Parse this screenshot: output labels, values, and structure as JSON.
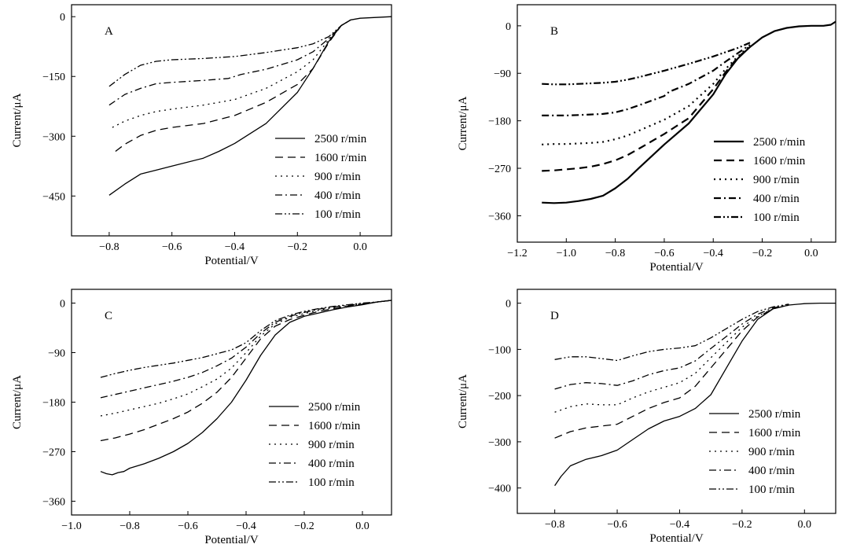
{
  "legend_labels": [
    "2500 r/min",
    "1600 r/min",
    "900 r/min",
    "400 r/min",
    "100 r/min"
  ],
  "chart_data": [
    {
      "panel": "A",
      "type": "line",
      "xlabel": "Potential/V",
      "ylabel": "Current/μA",
      "xlim": [
        -0.92,
        0.1
      ],
      "ylim": [
        -550,
        30
      ],
      "xticks": [
        -0.8,
        -0.6,
        -0.4,
        -0.2,
        0.0
      ],
      "xtick_labels": [
        "−0.8",
        "−0.6",
        "−0.4",
        "−0.2",
        "0.0"
      ],
      "yticks": [
        0,
        -150,
        -300,
        -450
      ],
      "ytick_labels": [
        "0",
        "−150",
        "−300",
        "−450"
      ],
      "legend_position": "right",
      "series": [
        {
          "name": "2500 r/min",
          "x": [
            -0.8,
            -0.75,
            -0.7,
            -0.65,
            -0.6,
            -0.5,
            -0.45,
            -0.4,
            -0.3,
            -0.2,
            -0.15,
            -0.1,
            -0.06,
            -0.03,
            0.0,
            0.05,
            0.1
          ],
          "y": [
            -448,
            -420,
            -395,
            -385,
            -375,
            -355,
            -338,
            -318,
            -268,
            -190,
            -130,
            -62,
            -22,
            -8,
            -4,
            -2,
            0
          ]
        },
        {
          "name": "1600 r/min",
          "x": [
            -0.78,
            -0.75,
            -0.7,
            -0.65,
            -0.6,
            -0.5,
            -0.4,
            -0.3,
            -0.2,
            -0.15,
            -0.1,
            -0.06,
            -0.03
          ],
          "y": [
            -338,
            -320,
            -298,
            -285,
            -278,
            -268,
            -248,
            -215,
            -170,
            -130,
            -65,
            -22,
            -8
          ]
        },
        {
          "name": "900 r/min",
          "x": [
            -0.79,
            -0.75,
            -0.7,
            -0.65,
            -0.6,
            -0.5,
            -0.4,
            -0.3,
            -0.2,
            -0.15,
            -0.1,
            -0.06,
            -0.03
          ],
          "y": [
            -278,
            -262,
            -248,
            -238,
            -232,
            -222,
            -208,
            -180,
            -138,
            -108,
            -58,
            -22,
            -8
          ]
        },
        {
          "name": "400 r/min",
          "x": [
            -0.8,
            -0.75,
            -0.7,
            -0.65,
            -0.6,
            -0.5,
            -0.42,
            -0.38,
            -0.3,
            -0.2,
            -0.15,
            -0.1,
            -0.06,
            -0.03
          ],
          "y": [
            -222,
            -195,
            -180,
            -168,
            -165,
            -160,
            -155,
            -145,
            -132,
            -108,
            -88,
            -55,
            -22,
            -8
          ]
        },
        {
          "name": "100 r/min",
          "x": [
            -0.8,
            -0.75,
            -0.7,
            -0.65,
            -0.6,
            -0.5,
            -0.4,
            -0.3,
            -0.2,
            -0.15,
            -0.1,
            -0.06,
            -0.03
          ],
          "y": [
            -175,
            -145,
            -122,
            -112,
            -108,
            -105,
            -100,
            -90,
            -78,
            -68,
            -50,
            -22,
            -8
          ]
        }
      ]
    },
    {
      "panel": "B",
      "type": "line",
      "xlabel": "Potential/V",
      "ylabel": "Current/μA",
      "xlim": [
        -1.2,
        0.1
      ],
      "ylim": [
        -410,
        40
      ],
      "xticks": [
        -1.2,
        -1.0,
        -0.8,
        -0.6,
        -0.4,
        -0.2,
        0.0
      ],
      "xtick_labels": [
        "−1.2",
        "−1.0",
        "−0.8",
        "−0.6",
        "−0.4",
        "−0.2",
        "0.0"
      ],
      "yticks": [
        0,
        -90,
        -180,
        -270,
        -360
      ],
      "ytick_labels": [
        "0",
        "−90",
        "−180",
        "−270",
        "−360"
      ],
      "legend_position": "right",
      "series": [
        {
          "name": "2500 r/min",
          "x": [
            -1.1,
            -1.05,
            -1.0,
            -0.95,
            -0.9,
            -0.85,
            -0.8,
            -0.75,
            -0.7,
            -0.6,
            -0.5,
            -0.4,
            -0.35,
            -0.3,
            -0.25,
            -0.2,
            -0.15,
            -0.1,
            -0.05,
            0.0,
            0.05,
            0.08,
            0.1
          ],
          "y": [
            -335,
            -336,
            -335,
            -332,
            -328,
            -322,
            -308,
            -290,
            -268,
            -225,
            -185,
            -130,
            -92,
            -62,
            -40,
            -22,
            -10,
            -4,
            -1,
            0,
            0,
            2,
            8
          ]
        },
        {
          "name": "1600 r/min",
          "x": [
            -1.1,
            -1.05,
            -1.0,
            -0.95,
            -0.9,
            -0.85,
            -0.8,
            -0.75,
            -0.7,
            -0.6,
            -0.5,
            -0.4,
            -0.35,
            -0.3,
            -0.25
          ],
          "y": [
            -275,
            -274,
            -272,
            -270,
            -267,
            -262,
            -255,
            -245,
            -232,
            -205,
            -175,
            -120,
            -88,
            -60,
            -40
          ]
        },
        {
          "name": "900 r/min",
          "x": [
            -1.1,
            -1.05,
            -1.0,
            -0.95,
            -0.9,
            -0.85,
            -0.8,
            -0.75,
            -0.7,
            -0.6,
            -0.5,
            -0.4,
            -0.35,
            -0.3,
            -0.25
          ],
          "y": [
            -225,
            -224,
            -224,
            -223,
            -222,
            -220,
            -215,
            -208,
            -198,
            -178,
            -152,
            -110,
            -82,
            -58,
            -38
          ]
        },
        {
          "name": "400 r/min",
          "x": [
            -1.1,
            -1.05,
            -1.0,
            -0.95,
            -0.9,
            -0.85,
            -0.8,
            -0.75,
            -0.7,
            -0.6,
            -0.58,
            -0.5,
            -0.4,
            -0.35,
            -0.3,
            -0.25
          ],
          "y": [
            -170,
            -170,
            -170,
            -169,
            -168,
            -167,
            -164,
            -158,
            -150,
            -133,
            -125,
            -110,
            -85,
            -68,
            -52,
            -36
          ]
        },
        {
          "name": "100 r/min",
          "x": [
            -1.1,
            -1.05,
            -1.0,
            -0.95,
            -0.9,
            -0.85,
            -0.8,
            -0.75,
            -0.7,
            -0.6,
            -0.5,
            -0.4,
            -0.35,
            -0.3,
            -0.25
          ],
          "y": [
            -110,
            -111,
            -111,
            -110,
            -109,
            -108,
            -106,
            -102,
            -97,
            -85,
            -72,
            -58,
            -50,
            -42,
            -32
          ]
        }
      ]
    },
    {
      "panel": "C",
      "type": "line",
      "xlabel": "Potential/V",
      "ylabel": "Current/μA",
      "xlim": [
        -1.0,
        0.1
      ],
      "ylim": [
        -385,
        25
      ],
      "xticks": [
        -1.0,
        -0.8,
        -0.6,
        -0.4,
        -0.2,
        0.0
      ],
      "xtick_labels": [
        "−1.0",
        "−0.8",
        "−0.6",
        "−0.4",
        "−0.2",
        "0.0"
      ],
      "yticks": [
        0,
        -90,
        -180,
        -270,
        -360
      ],
      "ytick_labels": [
        "0",
        "−90",
        "−180",
        "−270",
        "−360"
      ],
      "legend_position": "right",
      "series": [
        {
          "name": "2500 r/min",
          "x": [
            -0.9,
            -0.88,
            -0.86,
            -0.84,
            -0.82,
            -0.8,
            -0.75,
            -0.7,
            -0.65,
            -0.6,
            -0.55,
            -0.5,
            -0.45,
            -0.4,
            -0.35,
            -0.3,
            -0.25,
            -0.2,
            -0.15,
            -0.1,
            -0.05,
            0.0,
            0.05,
            0.1
          ],
          "y": [
            -306,
            -310,
            -312,
            -308,
            -306,
            -300,
            -292,
            -282,
            -270,
            -255,
            -235,
            -210,
            -180,
            -140,
            -95,
            -58,
            -35,
            -24,
            -18,
            -12,
            -7,
            -3,
            2,
            5
          ]
        },
        {
          "name": "1600 r/min",
          "x": [
            -0.9,
            -0.85,
            -0.8,
            -0.75,
            -0.7,
            -0.65,
            -0.6,
            -0.55,
            -0.5,
            -0.45,
            -0.4,
            -0.35,
            -0.3,
            -0.25,
            -0.2,
            -0.15,
            -0.1,
            -0.05,
            0.0,
            0.05,
            0.1
          ],
          "y": [
            -250,
            -245,
            -238,
            -230,
            -220,
            -210,
            -198,
            -182,
            -162,
            -135,
            -100,
            -65,
            -42,
            -30,
            -22,
            -15,
            -10,
            -6,
            -2,
            2,
            5
          ]
        },
        {
          "name": "900 r/min",
          "x": [
            -0.9,
            -0.85,
            -0.8,
            -0.75,
            -0.7,
            -0.65,
            -0.6,
            -0.55,
            -0.5,
            -0.45,
            -0.4,
            -0.35,
            -0.3,
            -0.25,
            -0.2,
            -0.15,
            -0.1,
            -0.05,
            0.0,
            0.05,
            0.1
          ],
          "y": [
            -205,
            -200,
            -194,
            -188,
            -182,
            -174,
            -165,
            -152,
            -138,
            -118,
            -90,
            -60,
            -38,
            -26,
            -19,
            -13,
            -8,
            -5,
            -2,
            2,
            5
          ]
        },
        {
          "name": "400 r/min",
          "x": [
            -0.9,
            -0.85,
            -0.8,
            -0.75,
            -0.7,
            -0.65,
            -0.6,
            -0.55,
            -0.5,
            -0.45,
            -0.4,
            -0.35,
            -0.3,
            -0.25,
            -0.2,
            -0.15,
            -0.1,
            -0.05,
            0.0,
            0.05,
            0.1
          ],
          "y": [
            -172,
            -166,
            -160,
            -154,
            -148,
            -142,
            -135,
            -126,
            -114,
            -100,
            -80,
            -55,
            -35,
            -24,
            -17,
            -11,
            -7,
            -4,
            -1,
            2,
            5
          ]
        },
        {
          "name": "100 r/min",
          "x": [
            -0.9,
            -0.85,
            -0.8,
            -0.75,
            -0.7,
            -0.65,
            -0.6,
            -0.55,
            -0.5,
            -0.45,
            -0.4,
            -0.35,
            -0.3,
            -0.25,
            -0.2,
            -0.15,
            -0.1,
            -0.05,
            0.0,
            0.05,
            0.1
          ],
          "y": [
            -135,
            -128,
            -122,
            -117,
            -113,
            -109,
            -104,
            -99,
            -92,
            -85,
            -72,
            -50,
            -32,
            -22,
            -15,
            -10,
            -6,
            -3,
            0,
            2,
            5
          ]
        }
      ]
    },
    {
      "panel": "D",
      "type": "line",
      "xlabel": "Potential/V",
      "ylabel": "Current/μA",
      "xlim": [
        -0.92,
        0.1
      ],
      "ylim": [
        -455,
        30
      ],
      "xticks": [
        -0.8,
        -0.6,
        -0.4,
        -0.2,
        0.0
      ],
      "xtick_labels": [
        "−0.8",
        "−0.6",
        "−0.4",
        "−0.2",
        "0.0"
      ],
      "yticks": [
        0,
        -100,
        -200,
        -300,
        -400
      ],
      "ytick_labels": [
        "0",
        "−100",
        "−200",
        "−300",
        "−400"
      ],
      "legend_position": "right",
      "series": [
        {
          "name": "2500 r/min",
          "x": [
            -0.8,
            -0.78,
            -0.75,
            -0.7,
            -0.65,
            -0.6,
            -0.55,
            -0.5,
            -0.45,
            -0.4,
            -0.35,
            -0.3,
            -0.25,
            -0.2,
            -0.15,
            -0.1,
            -0.05,
            0.0,
            0.05,
            0.1
          ],
          "y": [
            -395,
            -375,
            -352,
            -338,
            -330,
            -318,
            -295,
            -272,
            -255,
            -245,
            -228,
            -198,
            -140,
            -82,
            -35,
            -12,
            -4,
            -1,
            0,
            0
          ]
        },
        {
          "name": "1600 r/min",
          "x": [
            -0.8,
            -0.75,
            -0.7,
            -0.65,
            -0.6,
            -0.55,
            -0.5,
            -0.45,
            -0.4,
            -0.35,
            -0.3,
            -0.25,
            -0.2,
            -0.15,
            -0.1,
            -0.05
          ],
          "y": [
            -292,
            -278,
            -270,
            -266,
            -262,
            -245,
            -228,
            -215,
            -205,
            -180,
            -140,
            -100,
            -60,
            -30,
            -12,
            -4
          ]
        },
        {
          "name": "900 r/min",
          "x": [
            -0.8,
            -0.75,
            -0.7,
            -0.65,
            -0.6,
            -0.55,
            -0.5,
            -0.45,
            -0.4,
            -0.35,
            -0.3,
            -0.25,
            -0.2,
            -0.15,
            -0.1,
            -0.05
          ],
          "y": [
            -236,
            -224,
            -218,
            -220,
            -220,
            -205,
            -192,
            -182,
            -172,
            -152,
            -118,
            -85,
            -52,
            -28,
            -12,
            -4
          ]
        },
        {
          "name": "400 r/min",
          "x": [
            -0.8,
            -0.75,
            -0.7,
            -0.65,
            -0.6,
            -0.55,
            -0.5,
            -0.45,
            -0.4,
            -0.35,
            -0.3,
            -0.25,
            -0.2,
            -0.15,
            -0.1,
            -0.05
          ],
          "y": [
            -186,
            -176,
            -172,
            -174,
            -178,
            -168,
            -155,
            -146,
            -140,
            -125,
            -98,
            -72,
            -45,
            -24,
            -10,
            -3
          ]
        },
        {
          "name": "100 r/min",
          "x": [
            -0.8,
            -0.75,
            -0.7,
            -0.65,
            -0.6,
            -0.55,
            -0.5,
            -0.45,
            -0.4,
            -0.35,
            -0.3,
            -0.25,
            -0.2,
            -0.15,
            -0.1,
            -0.05
          ],
          "y": [
            -122,
            -116,
            -116,
            -120,
            -124,
            -114,
            -105,
            -100,
            -97,
            -92,
            -75,
            -55,
            -35,
            -18,
            -8,
            -2
          ]
        }
      ]
    }
  ]
}
